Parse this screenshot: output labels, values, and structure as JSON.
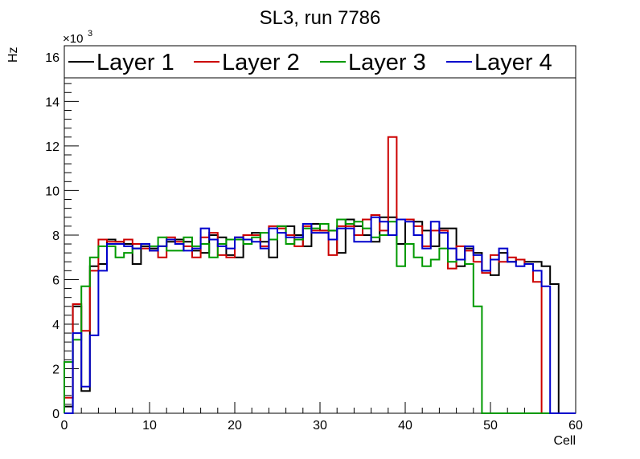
{
  "chart_data": {
    "type": "line",
    "title": "SL3, run 7786",
    "xlabel": "Cell",
    "ylabel": "Hz",
    "y_multiplier": "×10",
    "y_multiplier_exp": "3",
    "xlim": [
      0,
      60
    ],
    "ylim": [
      0,
      16.5
    ],
    "x_ticks": [
      0,
      10,
      20,
      30,
      40,
      50,
      60
    ],
    "y_ticks": [
      0,
      2,
      4,
      6,
      8,
      10,
      12,
      14,
      16
    ],
    "step": "histogram",
    "series": [
      {
        "name": "Layer 1",
        "color": "#000000",
        "values": [
          0.3,
          4.8,
          1.0,
          6.6,
          6.7,
          7.8,
          7.7,
          7.6,
          6.7,
          7.5,
          7.4,
          7.5,
          7.7,
          7.8,
          7.7,
          7.3,
          7.2,
          8.0,
          7.9,
          7.1,
          7.0,
          8.0,
          8.1,
          7.7,
          7.0,
          8.4,
          8.4,
          8.0,
          7.5,
          8.5,
          8.2,
          8.2,
          7.2,
          8.7,
          8.4,
          8.0,
          7.7,
          8.8,
          8.8,
          7.6,
          8.7,
          8.6,
          8.2,
          7.5,
          8.3,
          8.3,
          6.6,
          7.4,
          7.2,
          6.4,
          6.2,
          7.2,
          6.8,
          6.9,
          6.8,
          6.8,
          6.6,
          5.8,
          0.0,
          0.0
        ]
      },
      {
        "name": "Layer 2",
        "color": "#cc0000",
        "values": [
          0.7,
          4.9,
          3.7,
          6.4,
          7.8,
          7.7,
          7.7,
          7.8,
          7.6,
          7.4,
          7.3,
          7.0,
          7.9,
          7.7,
          7.5,
          7.0,
          7.9,
          8.1,
          7.1,
          7.0,
          7.9,
          8.0,
          8.0,
          7.5,
          8.4,
          8.3,
          8.0,
          7.5,
          8.4,
          8.2,
          8.2,
          7.1,
          8.4,
          8.4,
          8.0,
          8.7,
          8.9,
          8.2,
          12.4,
          8.7,
          8.7,
          8.4,
          7.5,
          8.2,
          8.2,
          6.5,
          7.5,
          7.3,
          6.8,
          6.3,
          7.1,
          6.8,
          7.0,
          6.9,
          6.7,
          5.9,
          0.0,
          0.0,
          0.0,
          0.0
        ]
      },
      {
        "name": "Layer 3",
        "color": "#009900",
        "values": [
          2.3,
          3.3,
          5.7,
          7.0,
          7.5,
          7.5,
          7.0,
          7.2,
          7.4,
          7.6,
          7.5,
          7.9,
          7.3,
          7.3,
          7.9,
          7.5,
          7.6,
          7.0,
          7.6,
          7.8,
          7.8,
          7.6,
          7.9,
          8.1,
          7.8,
          8.4,
          7.6,
          7.8,
          8.3,
          8.3,
          8.5,
          8.2,
          8.7,
          8.5,
          8.6,
          8.3,
          7.9,
          8.0,
          8.6,
          6.6,
          7.6,
          7.0,
          6.6,
          6.9,
          7.4,
          6.8,
          6.9,
          6.7,
          4.8,
          0.0,
          0.0,
          0.0,
          0.0,
          0.0,
          0.0,
          0.0,
          0.0,
          0.0,
          0.0,
          0.0
        ]
      },
      {
        "name": "Layer 4",
        "color": "#0000cc",
        "values": [
          0.0,
          3.6,
          1.2,
          3.5,
          6.4,
          7.6,
          7.6,
          7.5,
          7.4,
          7.6,
          7.3,
          7.5,
          7.8,
          7.6,
          7.3,
          7.4,
          8.3,
          7.8,
          7.5,
          7.4,
          7.9,
          7.8,
          7.7,
          7.4,
          8.3,
          8.1,
          7.9,
          7.9,
          8.5,
          8.1,
          8.1,
          7.8,
          8.3,
          8.3,
          7.7,
          7.7,
          8.8,
          8.6,
          8.0,
          8.7,
          8.6,
          8.0,
          7.4,
          8.6,
          8.1,
          7.4,
          6.9,
          7.5,
          7.1,
          6.4,
          6.9,
          7.4,
          6.8,
          6.6,
          6.7,
          6.4,
          5.7,
          0.0,
          0.0,
          0.0
        ]
      }
    ],
    "legend_placement": "top"
  }
}
